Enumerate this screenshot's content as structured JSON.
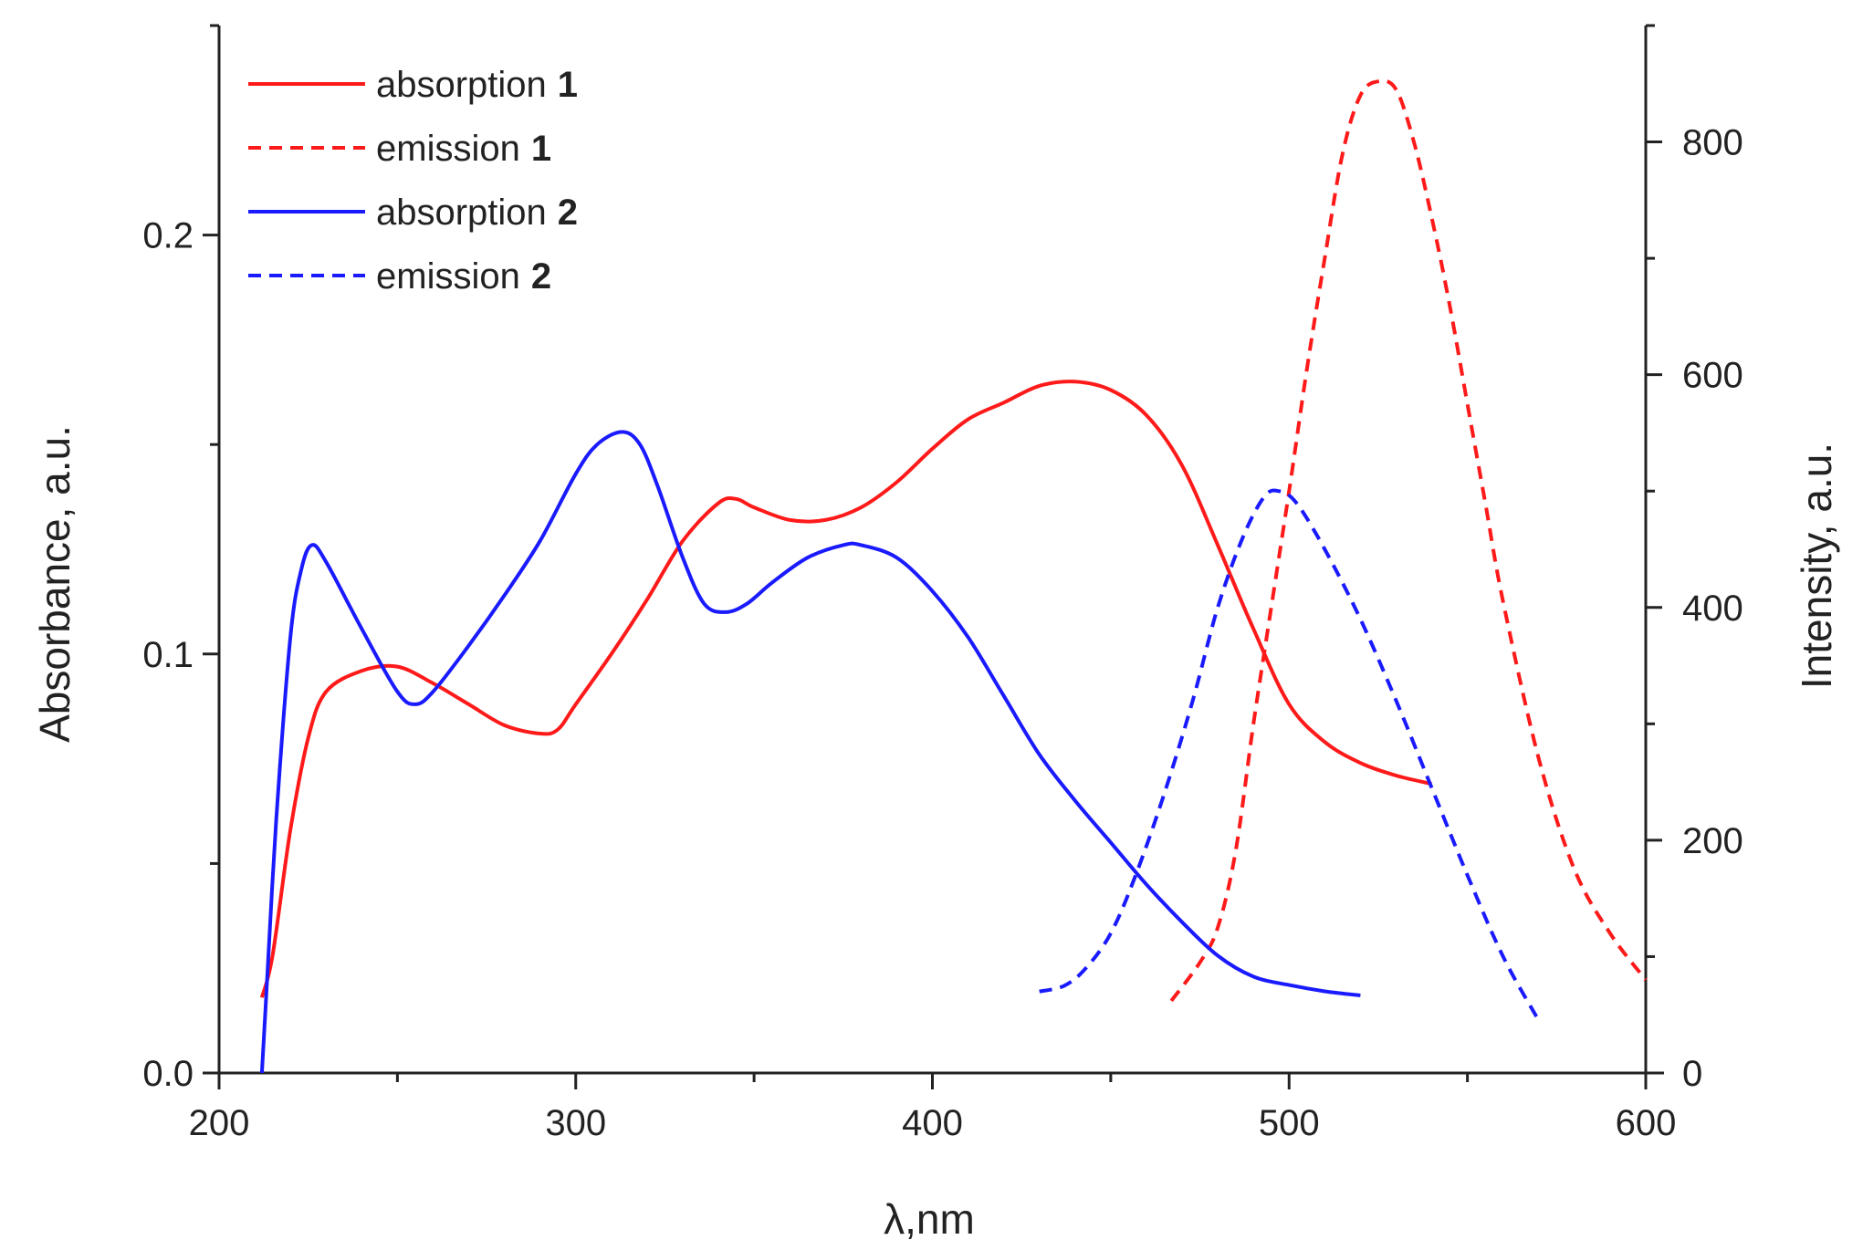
{
  "chart_data": {
    "type": "line",
    "title": "",
    "xlabel": "λ,nm",
    "ylabel_left": "Absorbance, a.u.",
    "ylabel_right": "Intensity, a.u.",
    "xlim": [
      200,
      600
    ],
    "ylim_left": [
      0,
      0.25
    ],
    "ylim_right": [
      0,
      900
    ],
    "x_ticks": [
      "200",
      "300",
      "400",
      "500",
      "600"
    ],
    "y_left_ticks": [
      "0.0",
      "0.1",
      "0.2"
    ],
    "y_right_ticks": [
      "0",
      "200",
      "400",
      "600",
      "800"
    ],
    "grid": false,
    "legend_position": "top-left",
    "colors": {
      "series1": "#ff1a1a",
      "series2": "#1a1aff",
      "axis": "#222222"
    },
    "series": [
      {
        "name": "absorption",
        "compound": "1",
        "axis": "left",
        "style": "solid",
        "color": "#ff1a1a",
        "x": [
          212,
          215,
          220,
          225,
          230,
          240,
          250,
          260,
          270,
          280,
          290,
          295,
          300,
          310,
          320,
          330,
          340,
          345,
          350,
          360,
          370,
          380,
          390,
          400,
          410,
          420,
          430,
          440,
          450,
          460,
          470,
          480,
          490,
          500,
          510,
          520,
          530,
          540
        ],
        "y": [
          0.018,
          0.028,
          0.058,
          0.08,
          0.091,
          0.096,
          0.097,
          0.093,
          0.088,
          0.083,
          0.081,
          0.082,
          0.088,
          0.1,
          0.113,
          0.127,
          0.136,
          0.137,
          0.135,
          0.132,
          0.132,
          0.135,
          0.141,
          0.149,
          0.156,
          0.16,
          0.164,
          0.165,
          0.163,
          0.157,
          0.145,
          0.126,
          0.106,
          0.088,
          0.079,
          0.074,
          0.071,
          0.069
        ]
      },
      {
        "name": "emission",
        "compound": "1",
        "axis": "right",
        "style": "dashed",
        "color": "#ff1a1a",
        "x": [
          467,
          475,
          480,
          485,
          490,
          495,
          500,
          505,
          510,
          515,
          520,
          525,
          530,
          535,
          540,
          545,
          550,
          555,
          560,
          570,
          580,
          590,
          600
        ],
        "y": [
          62,
          95,
          125,
          190,
          300,
          400,
          500,
          605,
          700,
          790,
          840,
          852,
          845,
          800,
          735,
          660,
          575,
          490,
          405,
          270,
          175,
          120,
          80
        ]
      },
      {
        "name": "absorption",
        "compound": "2",
        "axis": "left",
        "style": "solid",
        "color": "#1a1aff",
        "x": [
          212,
          213,
          216,
          220,
          223,
          226,
          230,
          240,
          250,
          255,
          260,
          270,
          280,
          290,
          300,
          306,
          313,
          318,
          323,
          330,
          336,
          342,
          348,
          355,
          365,
          375,
          380,
          390,
          400,
          410,
          420,
          430,
          440,
          450,
          460,
          470,
          480,
          490,
          500,
          510,
          520
        ],
        "y": [
          0.0,
          0.015,
          0.06,
          0.104,
          0.12,
          0.126,
          0.122,
          0.106,
          0.091,
          0.088,
          0.091,
          0.102,
          0.114,
          0.127,
          0.143,
          0.15,
          0.153,
          0.15,
          0.14,
          0.123,
          0.112,
          0.11,
          0.112,
          0.117,
          0.123,
          0.126,
          0.126,
          0.123,
          0.115,
          0.104,
          0.09,
          0.076,
          0.065,
          0.055,
          0.045,
          0.036,
          0.028,
          0.023,
          0.021,
          0.0195,
          0.0185
        ]
      },
      {
        "name": "emission",
        "compound": "2",
        "axis": "right",
        "style": "dashed",
        "color": "#1a1aff",
        "x": [
          430,
          437,
          443,
          450,
          457,
          465,
          473,
          480,
          487,
          493,
          497,
          502,
          510,
          520,
          530,
          540,
          550,
          560,
          570
        ],
        "y": [
          70,
          75,
          90,
          120,
          170,
          240,
          320,
          400,
          460,
          495,
          500,
          490,
          450,
          390,
          320,
          245,
          170,
          100,
          45
        ]
      }
    ]
  }
}
